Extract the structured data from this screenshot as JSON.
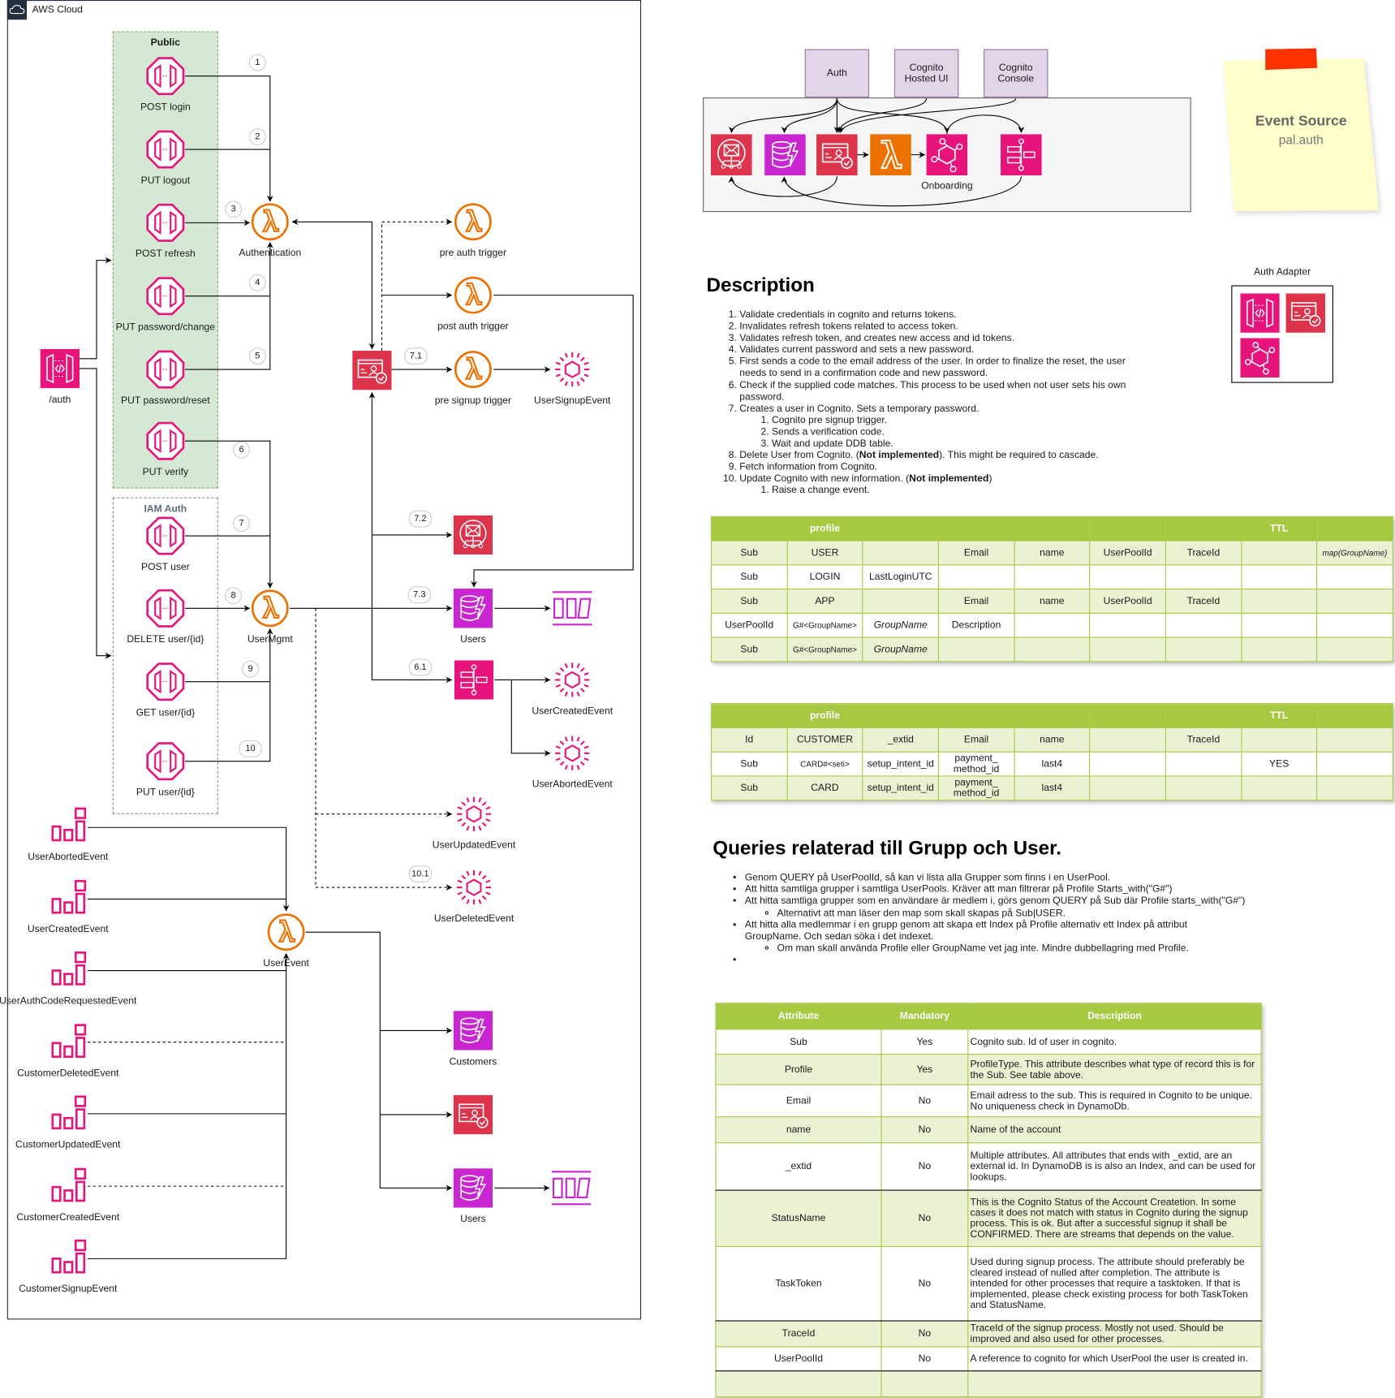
{
  "colors": {
    "lambda": "#ed7100",
    "api": "#e7157b",
    "cognito": "#dd344c",
    "dynamodb": "#c925d1",
    "table_header": "#a7c942",
    "table_alt_row": "#eaf2d3",
    "public_group": "#d5e8d4",
    "client_box": "#e1d5e7",
    "sticky_note": "#ffffcc",
    "sticky_tape": "#ff3300"
  },
  "diagram": {
    "cloud_title": "AWS Cloud",
    "public_group": "Public",
    "iam_group": "IAM Auth",
    "api": "/auth",
    "endpoints": [
      "POST login",
      "PUT logout",
      "POST refresh",
      "PUT password/change",
      "PUT password/reset",
      "PUT verify",
      "POST user",
      "DELETE user/{id}",
      "GET user/{id}",
      "PUT user/{id}"
    ],
    "lambdas": {
      "authentication": "Authentication",
      "usermgmt": "UserMgmt",
      "userevent": "UserEvent",
      "pre_auth": "pre auth trigger",
      "post_auth": "post auth trigger",
      "pre_signup": "pre signup trigger"
    },
    "steps": [
      "1",
      "2",
      "3",
      "4",
      "5",
      "6",
      "7",
      "8",
      "9",
      "10",
      "7.1",
      "7.2",
      "7.3",
      "6.1",
      "10.1"
    ],
    "events": {
      "signup": "UserSignupEvent",
      "created": "UserCreatedEvent",
      "aborted": "UserAbortedEvent",
      "updated": "UserUpdatedEvent",
      "deleted": "UserDeletedEvent"
    },
    "stores": {
      "users": "Users",
      "customers": "Customers",
      "users_bottom": "Users"
    },
    "incoming_events": [
      "UserAbortedEvent",
      "UserCreatedEvent",
      "UserAuthCodeRequestedEvent",
      "CustomerDeletedEvent",
      "CustomerUpdatedEvent",
      "CustomerCreatedEvent",
      "CustomerSignupEvent"
    ]
  },
  "overview": {
    "clients": [
      "Auth",
      "Cognito\nHosted UI",
      "Cognito\nConsole"
    ],
    "onboarding": "Onboarding"
  },
  "sticky": {
    "title": "Event Source",
    "subtitle": "pal.auth"
  },
  "adapter": {
    "title": "Auth Adapter"
  },
  "description": {
    "heading": "Description",
    "items": [
      {
        "text": [
          {
            "t": "Validate credentials in cognito and returns tokens."
          }
        ]
      },
      {
        "text": [
          {
            "t": "Invalidates refresh tokens related to access token."
          }
        ]
      },
      {
        "text": [
          {
            "t": "Validates refresh token, and creates new access and id tokens."
          }
        ]
      },
      {
        "text": [
          {
            "t": "Validates current password and sets a new password."
          }
        ]
      },
      {
        "text": [
          {
            "t": "First sends a code to the email address of the user. In order to finalize the reset, the user needs to send in a confirmation code and new password."
          }
        ]
      },
      {
        "text": [
          {
            "t": "Check if the supplied code matches. This process to be used when not user sets his own password."
          }
        ]
      },
      {
        "text": [
          {
            "t": "Creates a user in Cognito. Sets a temporary password."
          }
        ],
        "sub": [
          "Cognito pre signup trigger.",
          "Sends a verification code.",
          "Wait and update DDB table."
        ]
      },
      {
        "text": [
          {
            "t": "Delete User from Cognito. ("
          },
          {
            "t": "Not implemented",
            "b": true
          },
          {
            "t": "). This might be required to cascade."
          }
        ]
      },
      {
        "text": [
          {
            "t": "Fetch information from Cognito."
          }
        ]
      },
      {
        "text": [
          {
            "t": "Update Cognito with new information.  ("
          },
          {
            "t": "Not implemented",
            "b": true
          },
          {
            "t": ")"
          }
        ],
        "sub": [
          "Raise a change event."
        ]
      }
    ]
  },
  "profile_tables": [
    {
      "header": [
        "",
        "profile",
        "",
        "",
        "",
        "",
        "",
        "TTL",
        ""
      ],
      "rows": [
        [
          "Sub",
          "USER",
          "",
          "Email",
          "name",
          "UserPoolId",
          "TraceId",
          "",
          "map(GroupName)"
        ],
        [
          "Sub",
          "LOGIN",
          "LastLoginUTC",
          "",
          "",
          "",
          "",
          "",
          ""
        ],
        [
          "Sub",
          "APP",
          "",
          "Email",
          "name",
          "UserPoolId",
          "TraceId",
          "",
          ""
        ],
        [
          "UserPoolId",
          "G#<GroupName>",
          "GroupName",
          "Description",
          "",
          "",
          "",
          "",
          ""
        ],
        [
          "Sub",
          "G#<GroupName>",
          "GroupName",
          "",
          "",
          "",
          "",
          "",
          ""
        ]
      ]
    },
    {
      "header": [
        "",
        "profile",
        "",
        "",
        "",
        "",
        "",
        "TTL",
        ""
      ],
      "rows": [
        [
          "Id",
          "CUSTOMER",
          "_extid",
          "Email",
          "name",
          "",
          "TraceId",
          "",
          ""
        ],
        [
          "Sub",
          "CARD#<seti>",
          "setup_intent_id",
          "payment_\nmethod_id",
          "last4",
          "",
          "",
          "YES",
          ""
        ],
        [
          "Sub",
          "CARD",
          "setup_intent_id",
          "payment_\nmethod_id",
          "last4",
          "",
          "",
          "",
          ""
        ]
      ]
    }
  ],
  "queries": {
    "heading": "Queries relaterad till Grupp och User.",
    "items": [
      {
        "text": "Genom QUERY på UserPoolId, så kan vi lista alla Grupper som finns i en UserPool."
      },
      {
        "text": "Att hitta samtliga grupper i samtliga UserPools. Kräver att man filtrerar på Profile Starts_with(\"G#\")"
      },
      {
        "text": "Att hitta samtliga grupper som en användare är medlem i, görs genom QUERY på Sub där Profile starts_with(\"G#\")",
        "sub": [
          "Alternativt att man läser den map som skall skapas på Sub|USER."
        ]
      },
      {
        "text": "Att hitta alla medlemmar i en grupp genom att skapa ett Index på Profile alternativ ett Index på attribut GroupName. Och sedan söka i det indexet.",
        "sub": [
          "Om man skall använda Profile eller GroupName vet jag inte. Mindre dubbellagring med Profile."
        ]
      },
      {
        "text": ""
      }
    ]
  },
  "attributes": {
    "header": [
      "Attribute",
      "Mandatory",
      "Description"
    ],
    "rows": [
      [
        "Sub",
        "Yes",
        "Cognito sub. Id of user in cognito."
      ],
      [
        "Profile",
        "Yes",
        "ProfileType. This attribute describes what type of record this is for the Sub. See table above."
      ],
      [
        "Email",
        "No",
        "Email adress to the sub. This is required in Cognito to be unique. No uniqueness check in DynamoDb."
      ],
      [
        "name",
        "No",
        "Name of the account"
      ],
      [
        "_extid",
        "No",
        "Multiple attributes. All attributes that ends with _extid, are an external id. In DynamoDB is is also an Index, and can be used for lookups."
      ],
      [
        "StatusName",
        "No",
        "This is the Cognito Status of the Account Createtion. In some cases it does not match with status in Cognito during the signup process. This is ok. But after a successful signup it shall be CONFIRMED. There are streams that depends on the value."
      ],
      [
        "TaskToken",
        "No",
        "Used during signup process. The attribute should preferably be cleared instead of nulled after completion. The attribute is intended for other processes that require a tasktoken. If that is implemented, please check existing process for both TaskToken and StatusName."
      ],
      [
        "TraceId",
        "No",
        "TraceId of the signup process. Mostly not used. Should be improved and also used for other processes."
      ],
      [
        "UserPoolId",
        "No",
        "A reference to cognito for which UserPool the user is created in."
      ],
      [
        "",
        "",
        ""
      ]
    ]
  }
}
